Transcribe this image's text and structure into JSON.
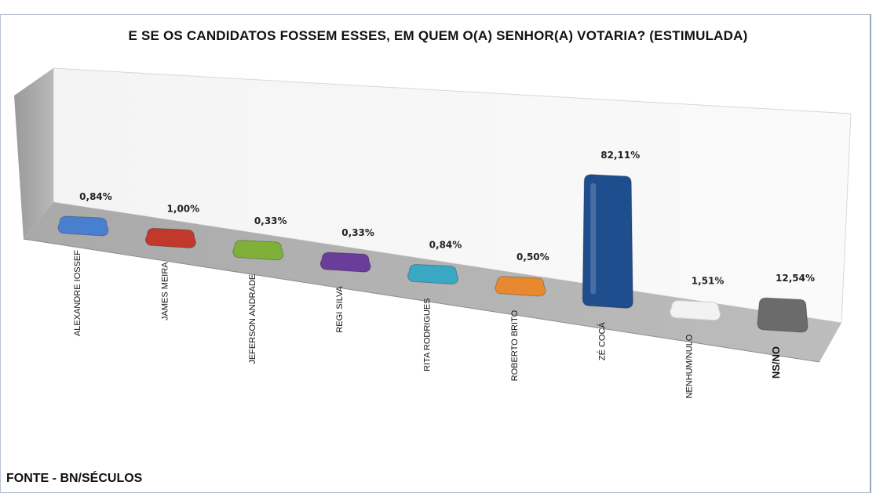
{
  "chart_data": {
    "type": "bar",
    "title": "E SE OS CANDIDATOS FOSSEM ESSES, EM QUEM O(A) SENHOR(A) VOTARIA? (ESTIMULADA)",
    "categories": [
      "ALEXANDRE IOSSEF",
      "JAMES MEIRA",
      "JEFERSON ANDRADE",
      "REGI SILVA",
      "RITA RODRIGUES",
      "ROBERTO BRITO",
      "ZÉ COCÁ",
      "NENHUM/NULO",
      "NS/NO"
    ],
    "values": [
      0.84,
      1.0,
      0.33,
      0.33,
      0.84,
      0.5,
      82.11,
      1.51,
      12.54
    ],
    "value_labels": [
      "0,84%",
      "1,00%",
      "0,33%",
      "0,33%",
      "0,84%",
      "0,50%",
      "82,11%",
      "1,51%",
      "12,54%"
    ],
    "colors": [
      "#4a7fd0",
      "#c0392b",
      "#7fb13a",
      "#6a3d9a",
      "#3aa7c4",
      "#e8892f",
      "#1f4e8f",
      "#f2f2f2",
      "#6b6b6b"
    ],
    "grid": false,
    "legend": "none"
  },
  "source": "FONTE - BN/SÉCULOS"
}
